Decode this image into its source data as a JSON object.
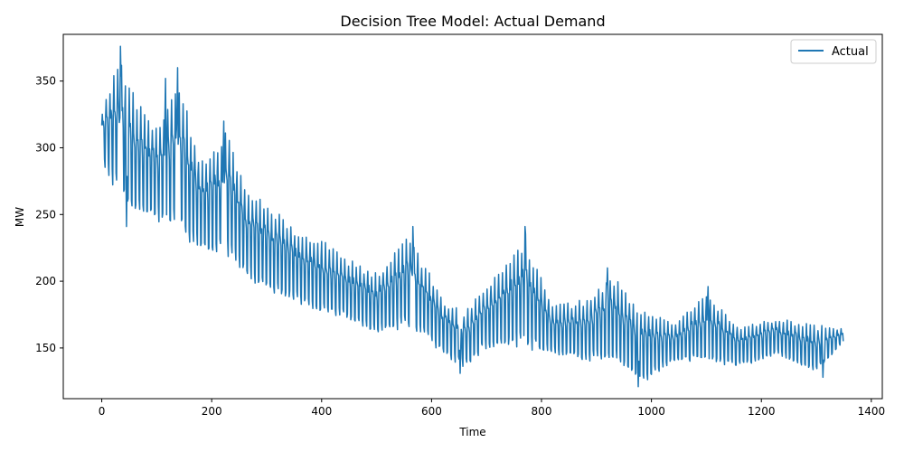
{
  "chart_data": {
    "type": "line",
    "title": "Decision Tree Model: Actual Demand",
    "xlabel": "Time",
    "ylabel": "MW",
    "xlim": [
      -70,
      1420
    ],
    "ylim": [
      112,
      385
    ],
    "xticks": [
      0,
      200,
      400,
      600,
      800,
      1000,
      1200,
      1400
    ],
    "xtick_labels": [
      "0",
      "200",
      "400",
      "600",
      "800",
      "1000",
      "1200",
      "1400"
    ],
    "yticks": [
      150,
      200,
      250,
      300,
      350
    ],
    "ytick_labels": [
      "150",
      "200",
      "250",
      "300",
      "350"
    ],
    "grid": false,
    "legend_position": "top-right",
    "series": [
      {
        "name": "Actual",
        "color": "#1f77b4",
        "x_start": 0,
        "x_step": 1,
        "n_points": 1350,
        "envelope": [
          {
            "x": 0,
            "high": 330,
            "low": 290
          },
          {
            "x": 30,
            "high": 375,
            "low": 262
          },
          {
            "x": 60,
            "high": 345,
            "low": 250
          },
          {
            "x": 100,
            "high": 320,
            "low": 245
          },
          {
            "x": 140,
            "high": 360,
            "low": 235
          },
          {
            "x": 180,
            "high": 295,
            "low": 222
          },
          {
            "x": 230,
            "high": 320,
            "low": 215
          },
          {
            "x": 260,
            "high": 275,
            "low": 205
          },
          {
            "x": 300,
            "high": 265,
            "low": 190
          },
          {
            "x": 350,
            "high": 245,
            "low": 185
          },
          {
            "x": 400,
            "high": 235,
            "low": 175
          },
          {
            "x": 450,
            "high": 220,
            "low": 170
          },
          {
            "x": 500,
            "high": 210,
            "low": 160
          },
          {
            "x": 560,
            "high": 240,
            "low": 165
          },
          {
            "x": 620,
            "high": 190,
            "low": 145
          },
          {
            "x": 660,
            "high": 180,
            "low": 135
          },
          {
            "x": 700,
            "high": 200,
            "low": 150
          },
          {
            "x": 770,
            "high": 240,
            "low": 150
          },
          {
            "x": 820,
            "high": 185,
            "low": 145
          },
          {
            "x": 880,
            "high": 190,
            "low": 140
          },
          {
            "x": 930,
            "high": 210,
            "low": 140
          },
          {
            "x": 980,
            "high": 185,
            "low": 122
          },
          {
            "x": 1040,
            "high": 170,
            "low": 140
          },
          {
            "x": 1100,
            "high": 195,
            "low": 138
          },
          {
            "x": 1160,
            "high": 170,
            "low": 135
          },
          {
            "x": 1230,
            "high": 175,
            "low": 145
          },
          {
            "x": 1300,
            "high": 170,
            "low": 130
          },
          {
            "x": 1350,
            "high": 165,
            "low": 155
          }
        ],
        "peaks": [
          {
            "x": 34,
            "y": 376
          },
          {
            "x": 138,
            "y": 360
          },
          {
            "x": 116,
            "y": 352
          },
          {
            "x": 222,
            "y": 320
          },
          {
            "x": 770,
            "y": 241
          },
          {
            "x": 566,
            "y": 241
          },
          {
            "x": 920,
            "y": 210
          },
          {
            "x": 1103,
            "y": 196
          }
        ],
        "troughs": [
          {
            "x": 976,
            "y": 121
          },
          {
            "x": 652,
            "y": 131
          },
          {
            "x": 1312,
            "y": 128
          },
          {
            "x": 45,
            "y": 241
          }
        ]
      }
    ]
  }
}
